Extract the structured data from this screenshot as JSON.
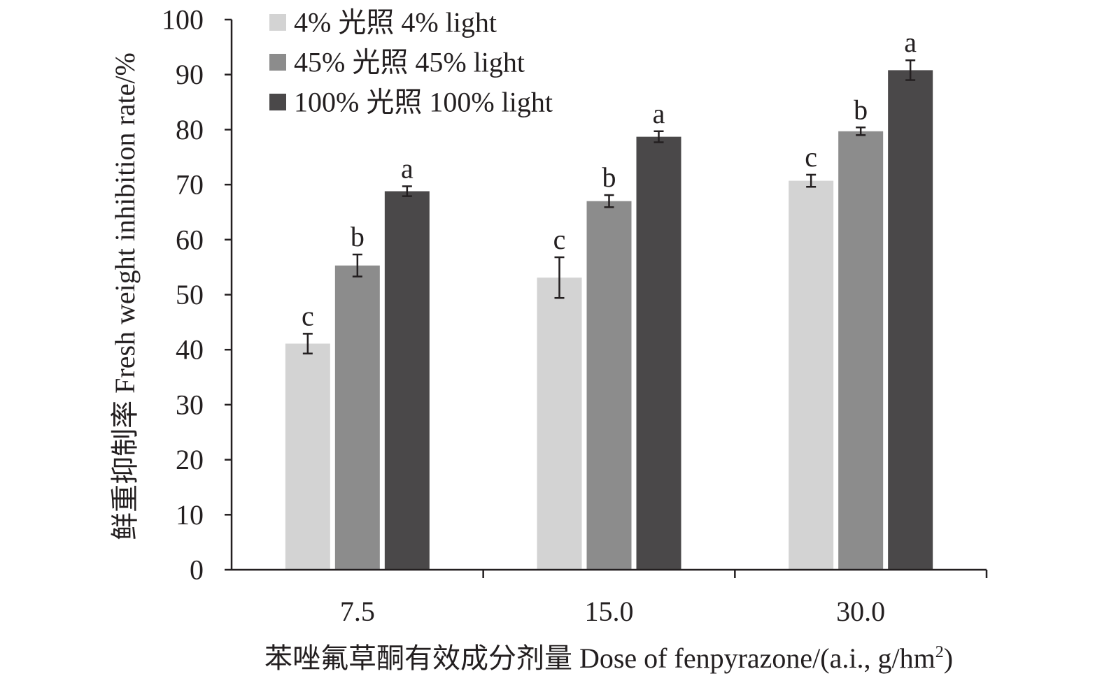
{
  "chart_data": {
    "type": "bar",
    "categories": [
      "7.5",
      "15.0",
      "30.0"
    ],
    "series": [
      {
        "name": "4% 光照 4% light",
        "color": "#d3d3d3",
        "values": [
          41.1,
          53.1,
          70.7
        ],
        "errors": [
          1.8,
          3.7,
          1.1
        ],
        "letters": [
          "c",
          "c",
          "c"
        ]
      },
      {
        "name": "45% 光照 45% light",
        "color": "#8c8c8c",
        "values": [
          55.3,
          67.0,
          79.7
        ],
        "errors": [
          2.0,
          1.1,
          0.7
        ],
        "letters": [
          "b",
          "b",
          "b"
        ]
      },
      {
        "name": "100% 光照 100% light",
        "color": "#4a4849",
        "values": [
          68.8,
          78.7,
          90.8
        ],
        "errors": [
          0.9,
          1.0,
          1.8
        ],
        "letters": [
          "a",
          "a",
          "a"
        ]
      }
    ],
    "ylim": [
      0,
      100
    ],
    "yticks": [
      0,
      10,
      20,
      30,
      40,
      50,
      60,
      70,
      80,
      90,
      100
    ],
    "ylabel": "鲜重抑制率 Fresh weight inhibition rate/%",
    "xlabel_main": "苯唑氟草酮有效成分剂量 Dose of fenpyrazone/(a.i., g/hm",
    "xlabel_sup": "2",
    "xlabel_end": ")",
    "legend_position": "top-left",
    "grid": false
  }
}
